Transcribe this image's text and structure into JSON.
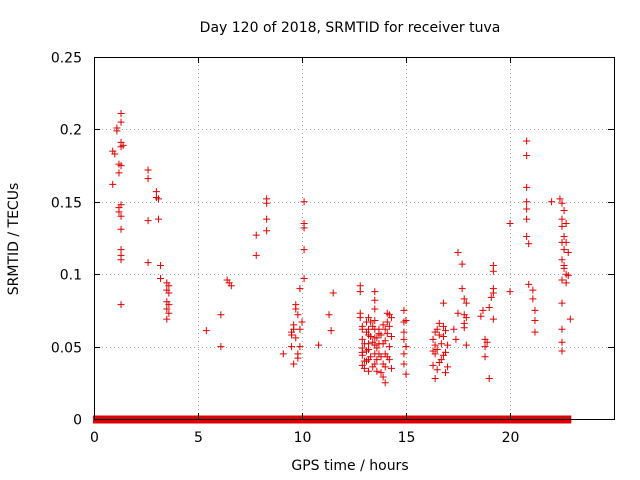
{
  "chart_data": {
    "type": "scatter",
    "title": "Day 120 of 2018, SRMTID for receiver tuva",
    "xlabel": "GPS time / hours",
    "ylabel": "SRMTID / TECUs",
    "xlim": [
      0,
      25
    ],
    "ylim": [
      0,
      0.25
    ],
    "x_ticks": [
      "0",
      "5",
      "10",
      "15",
      "20"
    ],
    "y_ticks": [
      "0",
      "0.05",
      "0.1",
      "0.15",
      "0.2",
      "0.25"
    ],
    "x_tick_values": [
      0,
      5,
      10,
      15,
      20
    ],
    "y_tick_values": [
      0,
      0.05,
      0.1,
      0.15,
      0.2,
      0.25
    ],
    "grid": true,
    "marker": "+",
    "marker_color": "#dd0000",
    "series": [
      {
        "points": [
          [
            0.9,
            0.162
          ],
          [
            0.9,
            0.185
          ],
          [
            1.0,
            0.183
          ],
          [
            1.1,
            0.199
          ],
          [
            1.1,
            0.201
          ],
          [
            1.2,
            0.176
          ],
          [
            1.2,
            0.17
          ],
          [
            1.2,
            0.143
          ],
          [
            1.2,
            0.146
          ],
          [
            1.3,
            0.211
          ],
          [
            1.3,
            0.205
          ],
          [
            1.3,
            0.191
          ],
          [
            1.3,
            0.188
          ],
          [
            1.3,
            0.175
          ],
          [
            1.3,
            0.148
          ],
          [
            1.3,
            0.14
          ],
          [
            1.3,
            0.131
          ],
          [
            1.3,
            0.117
          ],
          [
            1.3,
            0.113
          ],
          [
            1.3,
            0.11
          ],
          [
            1.3,
            0.079
          ],
          [
            1.4,
            0.189
          ],
          [
            2.6,
            0.172
          ],
          [
            2.6,
            0.166
          ],
          [
            2.6,
            0.137
          ],
          [
            2.6,
            0.108
          ],
          [
            3.0,
            0.157
          ],
          [
            3.0,
            0.153
          ],
          [
            3.1,
            0.152
          ],
          [
            3.1,
            0.138
          ],
          [
            3.2,
            0.106
          ],
          [
            3.2,
            0.097
          ],
          [
            3.5,
            0.094
          ],
          [
            3.5,
            0.089
          ],
          [
            3.5,
            0.081
          ],
          [
            3.5,
            0.076
          ],
          [
            3.5,
            0.069
          ],
          [
            3.6,
            0.092
          ],
          [
            3.6,
            0.087
          ],
          [
            3.6,
            0.079
          ],
          [
            3.6,
            0.073
          ],
          [
            5.4,
            0.061
          ],
          [
            6.1,
            0.072
          ],
          [
            6.1,
            0.05
          ],
          [
            6.4,
            0.096
          ],
          [
            6.5,
            0.094
          ],
          [
            6.6,
            0.092
          ],
          [
            7.8,
            0.127
          ],
          [
            7.8,
            0.113
          ],
          [
            8.3,
            0.152
          ],
          [
            8.3,
            0.149
          ],
          [
            8.3,
            0.138
          ],
          [
            8.3,
            0.13
          ],
          [
            9.1,
            0.045
          ],
          [
            9.5,
            0.06
          ],
          [
            9.5,
            0.058
          ],
          [
            9.5,
            0.05
          ],
          [
            9.6,
            0.065
          ],
          [
            9.6,
            0.062
          ],
          [
            9.6,
            0.038
          ],
          [
            9.7,
            0.079
          ],
          [
            9.7,
            0.076
          ],
          [
            9.7,
            0.056
          ],
          [
            9.8,
            0.072
          ],
          [
            9.8,
            0.045
          ],
          [
            9.8,
            0.042
          ],
          [
            9.9,
            0.09
          ],
          [
            9.9,
            0.062
          ],
          [
            9.9,
            0.05
          ],
          [
            10.0,
            0.067
          ],
          [
            10.1,
            0.15
          ],
          [
            10.1,
            0.135
          ],
          [
            10.1,
            0.132
          ],
          [
            10.1,
            0.117
          ],
          [
            10.1,
            0.097
          ],
          [
            10.8,
            0.051
          ],
          [
            11.3,
            0.072
          ],
          [
            11.4,
            0.061
          ],
          [
            11.5,
            0.087
          ],
          [
            12.8,
            0.092
          ],
          [
            12.8,
            0.088
          ],
          [
            12.8,
            0.073
          ],
          [
            12.8,
            0.07
          ],
          [
            12.9,
            0.064
          ],
          [
            12.9,
            0.062
          ],
          [
            12.9,
            0.055
          ],
          [
            12.9,
            0.049
          ],
          [
            12.9,
            0.046
          ],
          [
            12.9,
            0.044
          ],
          [
            12.9,
            0.037
          ],
          [
            13.0,
            0.035
          ],
          [
            13.0,
            0.04
          ],
          [
            13.0,
            0.052
          ],
          [
            13.1,
            0.06
          ],
          [
            13.1,
            0.067
          ],
          [
            13.1,
            0.047
          ],
          [
            13.1,
            0.04
          ],
          [
            13.2,
            0.07
          ],
          [
            13.2,
            0.062
          ],
          [
            13.2,
            0.058
          ],
          [
            13.2,
            0.052
          ],
          [
            13.2,
            0.048
          ],
          [
            13.2,
            0.041
          ],
          [
            13.2,
            0.033
          ],
          [
            13.3,
            0.067
          ],
          [
            13.3,
            0.057
          ],
          [
            13.3,
            0.043
          ],
          [
            13.4,
            0.064
          ],
          [
            13.4,
            0.053
          ],
          [
            13.4,
            0.036
          ],
          [
            13.5,
            0.088
          ],
          [
            13.5,
            0.082
          ],
          [
            13.5,
            0.076
          ],
          [
            13.5,
            0.068
          ],
          [
            13.5,
            0.062
          ],
          [
            13.5,
            0.056
          ],
          [
            13.5,
            0.051
          ],
          [
            13.5,
            0.045
          ],
          [
            13.5,
            0.038
          ],
          [
            13.6,
            0.056
          ],
          [
            13.6,
            0.049
          ],
          [
            13.6,
            0.041
          ],
          [
            13.6,
            0.033
          ],
          [
            13.7,
            0.062
          ],
          [
            13.7,
            0.059
          ],
          [
            13.7,
            0.052
          ],
          [
            13.7,
            0.045
          ],
          [
            13.8,
            0.058
          ],
          [
            13.8,
            0.043
          ],
          [
            13.8,
            0.032
          ],
          [
            13.9,
            0.065
          ],
          [
            13.9,
            0.052
          ],
          [
            13.9,
            0.038
          ],
          [
            13.9,
            0.029
          ],
          [
            14.0,
            0.062
          ],
          [
            14.0,
            0.054
          ],
          [
            14.0,
            0.045
          ],
          [
            14.0,
            0.036
          ],
          [
            14.0,
            0.025
          ],
          [
            14.1,
            0.073
          ],
          [
            14.1,
            0.067
          ],
          [
            14.1,
            0.059
          ],
          [
            14.1,
            0.043
          ],
          [
            14.2,
            0.072
          ],
          [
            14.2,
            0.064
          ],
          [
            14.2,
            0.05
          ],
          [
            14.2,
            0.041
          ],
          [
            14.3,
            0.07
          ],
          [
            14.3,
            0.057
          ],
          [
            14.3,
            0.035
          ],
          [
            14.9,
            0.075
          ],
          [
            14.9,
            0.067
          ],
          [
            14.9,
            0.06
          ],
          [
            14.9,
            0.055
          ],
          [
            14.9,
            0.045
          ],
          [
            14.9,
            0.038
          ],
          [
            15.0,
            0.068
          ],
          [
            15.0,
            0.05
          ],
          [
            15.0,
            0.05
          ],
          [
            15.0,
            0.031
          ],
          [
            16.3,
            0.055
          ],
          [
            16.3,
            0.047
          ],
          [
            16.3,
            0.037
          ],
          [
            16.4,
            0.06
          ],
          [
            16.4,
            0.051
          ],
          [
            16.4,
            0.045
          ],
          [
            16.4,
            0.028
          ],
          [
            16.5,
            0.062
          ],
          [
            16.5,
            0.048
          ],
          [
            16.5,
            0.034
          ],
          [
            16.6,
            0.066
          ],
          [
            16.6,
            0.058
          ],
          [
            16.6,
            0.039
          ],
          [
            16.7,
            0.052
          ],
          [
            16.7,
            0.041
          ],
          [
            16.8,
            0.08
          ],
          [
            16.8,
            0.064
          ],
          [
            16.8,
            0.057
          ],
          [
            16.8,
            0.044
          ],
          [
            16.9,
            0.061
          ],
          [
            16.9,
            0.046
          ],
          [
            16.9,
            0.032
          ],
          [
            17.0,
            0.051
          ],
          [
            17.0,
            0.036
          ],
          [
            17.3,
            0.062
          ],
          [
            17.4,
            0.055
          ],
          [
            17.5,
            0.115
          ],
          [
            17.5,
            0.073
          ],
          [
            17.7,
            0.107
          ],
          [
            17.7,
            0.09
          ],
          [
            17.8,
            0.083
          ],
          [
            17.8,
            0.072
          ],
          [
            17.8,
            0.066
          ],
          [
            17.8,
            0.063
          ],
          [
            17.9,
            0.08
          ],
          [
            17.9,
            0.07
          ],
          [
            17.9,
            0.051
          ],
          [
            18.6,
            0.071
          ],
          [
            18.7,
            0.075
          ],
          [
            18.8,
            0.055
          ],
          [
            18.8,
            0.05
          ],
          [
            18.8,
            0.043
          ],
          [
            18.9,
            0.053
          ],
          [
            19.0,
            0.077
          ],
          [
            19.0,
            0.028
          ],
          [
            19.1,
            0.084
          ],
          [
            19.2,
            0.106
          ],
          [
            19.2,
            0.102
          ],
          [
            19.2,
            0.09
          ],
          [
            19.2,
            0.087
          ],
          [
            19.2,
            0.069
          ],
          [
            20.0,
            0.135
          ],
          [
            20.0,
            0.088
          ],
          [
            20.8,
            0.192
          ],
          [
            20.8,
            0.182
          ],
          [
            20.8,
            0.16
          ],
          [
            20.8,
            0.15
          ],
          [
            20.8,
            0.145
          ],
          [
            20.8,
            0.138
          ],
          [
            20.8,
            0.126
          ],
          [
            20.9,
            0.121
          ],
          [
            20.9,
            0.093
          ],
          [
            21.1,
            0.089
          ],
          [
            21.1,
            0.083
          ],
          [
            21.2,
            0.075
          ],
          [
            21.2,
            0.068
          ],
          [
            21.2,
            0.06
          ],
          [
            22.0,
            0.15
          ],
          [
            22.4,
            0.152
          ],
          [
            22.5,
            0.149
          ],
          [
            22.5,
            0.138
          ],
          [
            22.5,
            0.133
          ],
          [
            22.5,
            0.122
          ],
          [
            22.5,
            0.11
          ],
          [
            22.5,
            0.096
          ],
          [
            22.5,
            0.08
          ],
          [
            22.5,
            0.062
          ],
          [
            22.5,
            0.053
          ],
          [
            22.5,
            0.047
          ],
          [
            22.6,
            0.144
          ],
          [
            22.6,
            0.126
          ],
          [
            22.6,
            0.117
          ],
          [
            22.6,
            0.106
          ],
          [
            22.6,
            0.104
          ],
          [
            22.7,
            0.135
          ],
          [
            22.7,
            0.122
          ],
          [
            22.7,
            0.1
          ],
          [
            22.7,
            0.094
          ],
          [
            22.8,
            0.115
          ],
          [
            22.8,
            0.099
          ],
          [
            22.9,
            0.069
          ]
        ]
      }
    ]
  }
}
